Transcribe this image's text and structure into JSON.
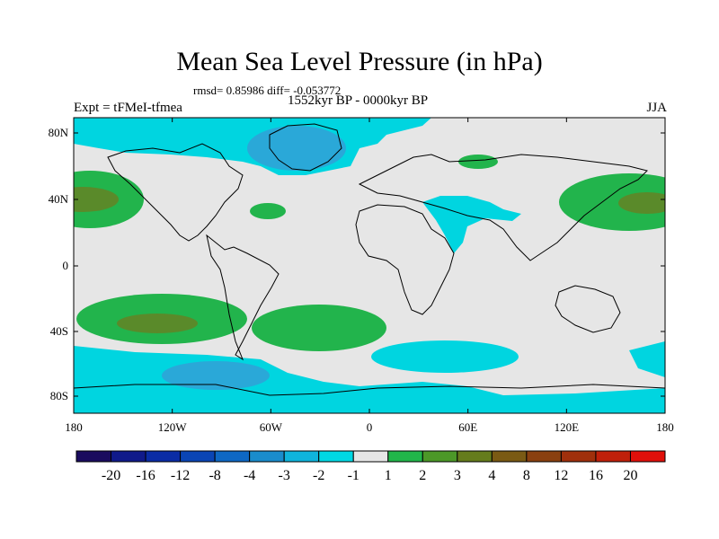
{
  "title": "Mean Sea Level Pressure (in hPa)",
  "stats_label": "rmsd= 0.85986 diff= -0.053772",
  "experiment_label": "Expt = tFMeI-tfmea",
  "period_label": "1552kyr BP - 0000kyr BP",
  "season_label": "JJA",
  "colors": {
    "background": "#e6e6e6",
    "neg_light": "#00d5e0",
    "neg_mid": "#2aa8d8",
    "pos_light": "#22b44c",
    "pos_mid": "#5a8a2a"
  },
  "map": {
    "lon_range": [
      -180,
      180
    ],
    "lat_range": [
      -90,
      90
    ],
    "x_ticks": [
      "180",
      "120W",
      "60W",
      "0",
      "60E",
      "120E",
      "180"
    ],
    "y_ticks": [
      "80N",
      "40N",
      "0",
      "40S",
      "80S"
    ]
  },
  "colorbar": {
    "colors": [
      "#1a0b5e",
      "#101a8a",
      "#0a2ca5",
      "#0a45b5",
      "#0e68c4",
      "#1a8ccc",
      "#0fb4dc",
      "#00d8e4",
      "#e6e6e6",
      "#21b64a",
      "#4c9828",
      "#657c1c",
      "#7a5a14",
      "#8a4010",
      "#a0300c",
      "#c0200a",
      "#e0100a"
    ],
    "labels": [
      "-20",
      "-16",
      "-12",
      "-8",
      "-4",
      "-3",
      "-2",
      "-1",
      "1",
      "2",
      "3",
      "4",
      "8",
      "12",
      "16",
      "20"
    ]
  }
}
